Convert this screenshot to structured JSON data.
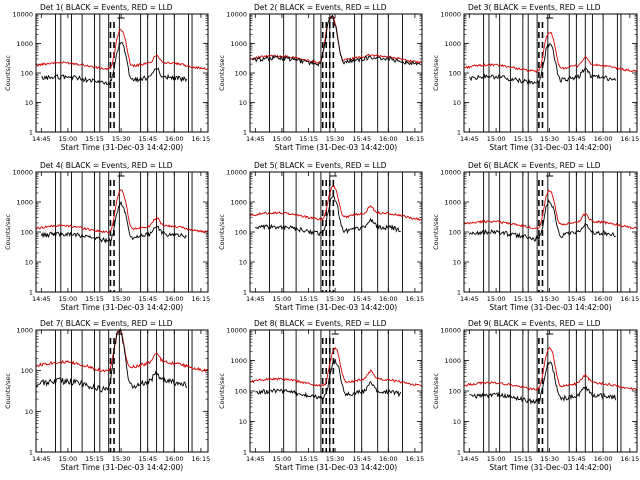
{
  "figure": {
    "grid_rows": 3,
    "grid_cols": 3
  },
  "colors": {
    "events": "#000000",
    "lld": "#d40000",
    "background": "#ffffff"
  },
  "chart_data": [
    {
      "type": "line",
      "title": "Det  1(  BLACK  =  Events,  RED  =  LLD",
      "ylabel": "Counts/sec",
      "xlabel": "Start Time (31-Dec-03 14:42:00)",
      "x_tick_labels": [
        "14:45",
        "15:00",
        "15:15",
        "15:30",
        "15:45",
        "16:00",
        "16:15"
      ],
      "y_tick_labels": [
        "1",
        "10",
        "100",
        "1000",
        "10000"
      ],
      "ylim": [
        1,
        10000
      ],
      "xlim_minutes": [
        0,
        97
      ],
      "events_start_min": 3,
      "events_end_min": 85,
      "lld_base": 180,
      "lld_peak": 3000,
      "events_base": 60,
      "events_peak": 1000,
      "second_peak_factor": 1.8,
      "peak_min": 48,
      "peak2_min": 68,
      "vlines_solid_min": [
        11,
        14,
        20,
        26,
        33,
        36,
        41,
        47,
        59,
        63,
        68,
        72,
        78,
        86,
        88
      ],
      "vlines_dashed_min": [
        42,
        44
      ]
    },
    {
      "type": "line",
      "title": "Det  2(  BLACK  =  Events,  RED  =  LLD",
      "ylabel": "Counts/sec",
      "xlabel": "Start Time (31-Dec-03 14:42:00)",
      "x_tick_labels": [
        "14:45",
        "15:00",
        "15:15",
        "15:30",
        "15:45",
        "16:00",
        "16:15"
      ],
      "y_tick_labels": [
        "1",
        "10",
        "100",
        "1000",
        "10000"
      ],
      "ylim": [
        1,
        10000
      ],
      "xlim_minutes": [
        0,
        97
      ],
      "events_start_min": 1,
      "events_end_min": 96,
      "lld_base": 300,
      "lld_peak": 9000,
      "events_base": 260,
      "events_peak": 8000,
      "second_peak_factor": 1.1,
      "peak_min": 46,
      "peak2_min": 68,
      "vlines_solid_min": [
        11,
        19,
        26,
        36,
        40,
        45,
        59,
        63,
        72,
        78,
        86
      ],
      "vlines_dashed_min": [
        41,
        43,
        45,
        47
      ]
    },
    {
      "type": "line",
      "title": "Det  3(  BLACK  =  Events,  RED  =  LLD",
      "ylabel": "Counts/sec",
      "xlabel": "Start Time (31-Dec-03 14:42:00)",
      "x_tick_labels": [
        "14:45",
        "15:00",
        "15:15",
        "15:30",
        "15:45",
        "16:00",
        "16:15"
      ],
      "y_tick_labels": [
        "1",
        "10",
        "100",
        "1000",
        "10000"
      ],
      "ylim": [
        1,
        10000
      ],
      "xlim_minutes": [
        0,
        97
      ],
      "events_start_min": 3,
      "events_end_min": 85,
      "lld_base": 150,
      "lld_peak": 2500,
      "events_base": 60,
      "events_peak": 1000,
      "second_peak_factor": 1.8,
      "peak_min": 48,
      "peak2_min": 68,
      "vlines_solid_min": [
        11,
        14,
        20,
        26,
        33,
        36,
        41,
        47,
        59,
        63,
        68,
        72,
        78,
        86,
        88
      ],
      "vlines_dashed_min": [
        42,
        44
      ]
    },
    {
      "type": "line",
      "title": "Det  4(  BLACK  =  Events,  RED  =  LLD",
      "ylabel": "Counts/sec",
      "xlabel": "Start Time (31-Dec-03 14:42:00)",
      "x_tick_labels": [
        "14:45",
        "15:00",
        "15:15",
        "15:30",
        "15:45",
        "16:00",
        "16:15"
      ],
      "y_tick_labels": [
        "1",
        "10",
        "100",
        "1000",
        "10000"
      ],
      "ylim": [
        1,
        10000
      ],
      "xlim_minutes": [
        0,
        97
      ],
      "events_start_min": 3,
      "events_end_min": 85,
      "lld_base": 130,
      "lld_peak": 2500,
      "events_base": 70,
      "events_peak": 900,
      "second_peak_factor": 1.8,
      "peak_min": 48,
      "peak2_min": 68,
      "vlines_solid_min": [
        11,
        14,
        20,
        26,
        33,
        36,
        41,
        47,
        59,
        63,
        68,
        72,
        78,
        86,
        88
      ],
      "vlines_dashed_min": [
        42,
        44
      ]
    },
    {
      "type": "line",
      "title": "Det  5(  BLACK  =  Events,  RED  =  LLD",
      "ylabel": "Counts/sec",
      "xlabel": "Start Time (31-Dec-03 14:42:00)",
      "x_tick_labels": [
        "14:45",
        "15:00",
        "15:15",
        "15:30",
        "15:45",
        "16:00",
        "16:15"
      ],
      "y_tick_labels": [
        "1",
        "10",
        "100",
        "1000",
        "10000"
      ],
      "ylim": [
        1,
        10000
      ],
      "xlim_minutes": [
        0,
        97
      ],
      "events_start_min": 3,
      "events_end_min": 85,
      "lld_base": 350,
      "lld_peak": 3500,
      "events_base": 120,
      "events_peak": 1500,
      "second_peak_factor": 1.6,
      "peak_min": 47,
      "peak2_min": 68,
      "vlines_solid_min": [
        11,
        19,
        26,
        36,
        40,
        45,
        59,
        63,
        72,
        78,
        86
      ],
      "vlines_dashed_min": [
        41,
        43,
        45,
        47
      ]
    },
    {
      "type": "line",
      "title": "Det  6(  BLACK  =  Events,  RED  =  LLD",
      "ylabel": "Counts/sec",
      "xlabel": "Start Time (31-Dec-03 14:42:00)",
      "x_tick_labels": [
        "14:45",
        "15:00",
        "15:15",
        "15:30",
        "15:45",
        "16:00",
        "16:15"
      ],
      "y_tick_labels": [
        "1",
        "10",
        "100",
        "1000",
        "10000"
      ],
      "ylim": [
        1,
        10000
      ],
      "xlim_minutes": [
        0,
        97
      ],
      "events_start_min": 3,
      "events_end_min": 85,
      "lld_base": 180,
      "lld_peak": 2500,
      "events_base": 80,
      "events_peak": 1100,
      "second_peak_factor": 1.8,
      "peak_min": 48,
      "peak2_min": 68,
      "vlines_solid_min": [
        11,
        14,
        20,
        26,
        33,
        36,
        41,
        47,
        59,
        63,
        68,
        72,
        78,
        86,
        88
      ],
      "vlines_dashed_min": [
        42,
        44
      ]
    },
    {
      "type": "line",
      "title": "Det  7(  BLACK  =  Events,  RED  =  LLD",
      "ylabel": "Counts/sec",
      "xlabel": "Start Time (31-Dec-03 14:42:00)",
      "x_tick_labels": [
        "14:45",
        "15:00",
        "15:15",
        "15:30",
        "15:45",
        "16:00",
        "16:15"
      ],
      "y_tick_labels": [
        "1",
        "10",
        "100",
        "1000"
      ],
      "ylim": [
        1,
        1000
      ],
      "xlim_minutes": [
        0,
        97
      ],
      "events_start_min": 0,
      "events_end_min": 85,
      "lld_base": 130,
      "lld_peak": 1000,
      "events_base": 45,
      "events_peak": 1000,
      "second_peak_factor": 1.6,
      "peak_min": 47,
      "peak2_min": 68,
      "vlines_solid_min": [
        11,
        14,
        20,
        26,
        33,
        36,
        41,
        47,
        59,
        63,
        68,
        72,
        78,
        86,
        88
      ],
      "vlines_dashed_min": [
        42,
        44
      ]
    },
    {
      "type": "line",
      "title": "Det  8(  BLACK  =  Events,  RED  =  LLD",
      "ylabel": "Counts/sec",
      "xlabel": "Start Time (31-Dec-03 14:42:00)",
      "x_tick_labels": [
        "14:45",
        "15:00",
        "15:15",
        "15:30",
        "15:45",
        "16:00",
        "16:15"
      ],
      "y_tick_labels": [
        "1",
        "10",
        "100",
        "1000",
        "10000"
      ],
      "ylim": [
        1,
        10000
      ],
      "xlim_minutes": [
        0,
        97
      ],
      "events_start_min": 3,
      "events_end_min": 85,
      "lld_base": 200,
      "lld_peak": 2500,
      "events_base": 80,
      "events_peak": 1000,
      "second_peak_factor": 1.8,
      "peak_min": 48,
      "peak2_min": 68,
      "vlines_solid_min": [
        11,
        19,
        26,
        36,
        40,
        45,
        59,
        63,
        72,
        78,
        86
      ],
      "vlines_dashed_min": [
        41,
        43,
        45,
        47
      ]
    },
    {
      "type": "line",
      "title": "Det  9(  BLACK  =  Events,  RED  =  LLD",
      "ylabel": "Counts/sec",
      "xlabel": "Start Time (31-Dec-03 14:42:00)",
      "x_tick_labels": [
        "14:45",
        "15:00",
        "15:15",
        "15:30",
        "15:45",
        "16:00",
        "16:15"
      ],
      "y_tick_labels": [
        "1",
        "10",
        "100",
        "1000",
        "10000"
      ],
      "ylim": [
        1,
        10000
      ],
      "xlim_minutes": [
        0,
        97
      ],
      "events_start_min": 3,
      "events_end_min": 85,
      "lld_base": 150,
      "lld_peak": 2500,
      "events_base": 60,
      "events_peak": 900,
      "second_peak_factor": 1.8,
      "peak_min": 48,
      "peak2_min": 68,
      "vlines_solid_min": [
        11,
        14,
        20,
        26,
        33,
        36,
        41,
        47,
        59,
        63,
        68,
        72,
        78,
        86,
        88
      ],
      "vlines_dashed_min": [
        42,
        44
      ]
    }
  ]
}
